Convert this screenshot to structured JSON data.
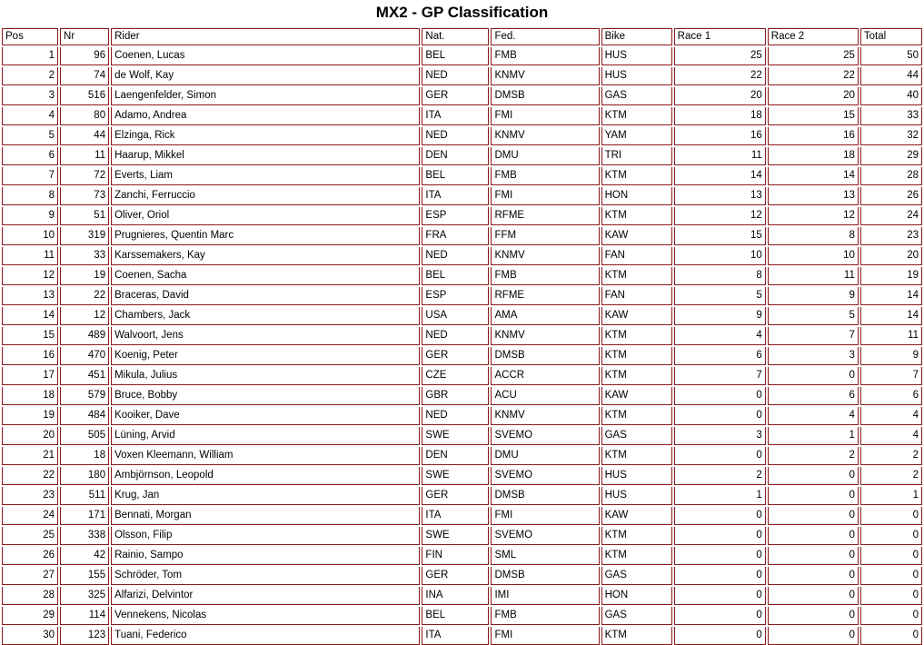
{
  "title": "MX2 - GP Classification",
  "colors": {
    "border": "#8B1A1A",
    "text": "#000000",
    "background": "#FFFFFF"
  },
  "table": {
    "columns": [
      {
        "key": "pos",
        "label": "Pos",
        "align": "right"
      },
      {
        "key": "nr",
        "label": "Nr",
        "align": "right"
      },
      {
        "key": "rider",
        "label": "Rider",
        "align": "left"
      },
      {
        "key": "nat",
        "label": "Nat.",
        "align": "left"
      },
      {
        "key": "fed",
        "label": "Fed.",
        "align": "left"
      },
      {
        "key": "bike",
        "label": "Bike",
        "align": "left"
      },
      {
        "key": "race1",
        "label": "Race 1",
        "align": "right"
      },
      {
        "key": "race2",
        "label": "Race 2",
        "align": "right"
      },
      {
        "key": "total",
        "label": "Total",
        "align": "right"
      }
    ],
    "rows": [
      [
        1,
        96,
        "Coenen, Lucas",
        "BEL",
        "FMB",
        "HUS",
        25,
        25,
        50
      ],
      [
        2,
        74,
        "de Wolf, Kay",
        "NED",
        "KNMV",
        "HUS",
        22,
        22,
        44
      ],
      [
        3,
        516,
        "Laengenfelder, Simon",
        "GER",
        "DMSB",
        "GAS",
        20,
        20,
        40
      ],
      [
        4,
        80,
        "Adamo, Andrea",
        "ITA",
        "FMI",
        "KTM",
        18,
        15,
        33
      ],
      [
        5,
        44,
        "Elzinga, Rick",
        "NED",
        "KNMV",
        "YAM",
        16,
        16,
        32
      ],
      [
        6,
        11,
        "Haarup, Mikkel",
        "DEN",
        "DMU",
        "TRI",
        11,
        18,
        29
      ],
      [
        7,
        72,
        "Everts, Liam",
        "BEL",
        "FMB",
        "KTM",
        14,
        14,
        28
      ],
      [
        8,
        73,
        "Zanchi, Ferruccio",
        "ITA",
        "FMI",
        "HON",
        13,
        13,
        26
      ],
      [
        9,
        51,
        "Oliver, Oriol",
        "ESP",
        "RFME",
        "KTM",
        12,
        12,
        24
      ],
      [
        10,
        319,
        "Prugnieres, Quentin Marc",
        "FRA",
        "FFM",
        "KAW",
        15,
        8,
        23
      ],
      [
        11,
        33,
        "Karssemakers, Kay",
        "NED",
        "KNMV",
        "FAN",
        10,
        10,
        20
      ],
      [
        12,
        19,
        "Coenen, Sacha",
        "BEL",
        "FMB",
        "KTM",
        8,
        11,
        19
      ],
      [
        13,
        22,
        "Braceras, David",
        "ESP",
        "RFME",
        "FAN",
        5,
        9,
        14
      ],
      [
        14,
        12,
        "Chambers, Jack",
        "USA",
        "AMA",
        "KAW",
        9,
        5,
        14
      ],
      [
        15,
        489,
        "Walvoort, Jens",
        "NED",
        "KNMV",
        "KTM",
        4,
        7,
        11
      ],
      [
        16,
        470,
        "Koenig, Peter",
        "GER",
        "DMSB",
        "KTM",
        6,
        3,
        9
      ],
      [
        17,
        451,
        "Mikula, Julius",
        "CZE",
        "ACCR",
        "KTM",
        7,
        0,
        7
      ],
      [
        18,
        579,
        "Bruce, Bobby",
        "GBR",
        "ACU",
        "KAW",
        0,
        6,
        6
      ],
      [
        19,
        484,
        "Kooiker, Dave",
        "NED",
        "KNMV",
        "KTM",
        0,
        4,
        4
      ],
      [
        20,
        505,
        "Lüning, Arvid",
        "SWE",
        "SVEMO",
        "GAS",
        3,
        1,
        4
      ],
      [
        21,
        18,
        "Voxen Kleemann, William",
        "DEN",
        "DMU",
        "KTM",
        0,
        2,
        2
      ],
      [
        22,
        180,
        "Ambjörnson, Leopold",
        "SWE",
        "SVEMO",
        "HUS",
        2,
        0,
        2
      ],
      [
        23,
        511,
        "Krug, Jan",
        "GER",
        "DMSB",
        "HUS",
        1,
        0,
        1
      ],
      [
        24,
        171,
        "Bennati, Morgan",
        "ITA",
        "FMI",
        "KAW",
        0,
        0,
        0
      ],
      [
        25,
        338,
        "Olsson, Filip",
        "SWE",
        "SVEMO",
        "KTM",
        0,
        0,
        0
      ],
      [
        26,
        42,
        "Rainio, Sampo",
        "FIN",
        "SML",
        "KTM",
        0,
        0,
        0
      ],
      [
        27,
        155,
        "Schröder, Tom",
        "GER",
        "DMSB",
        "GAS",
        0,
        0,
        0
      ],
      [
        28,
        325,
        "Alfarizi, Delvintor",
        "INA",
        "IMI",
        "HON",
        0,
        0,
        0
      ],
      [
        29,
        114,
        "Vennekens, Nicolas",
        "BEL",
        "FMB",
        "GAS",
        0,
        0,
        0
      ],
      [
        30,
        123,
        "Tuani, Federico",
        "ITA",
        "FMI",
        "KTM",
        0,
        0,
        0
      ]
    ]
  }
}
